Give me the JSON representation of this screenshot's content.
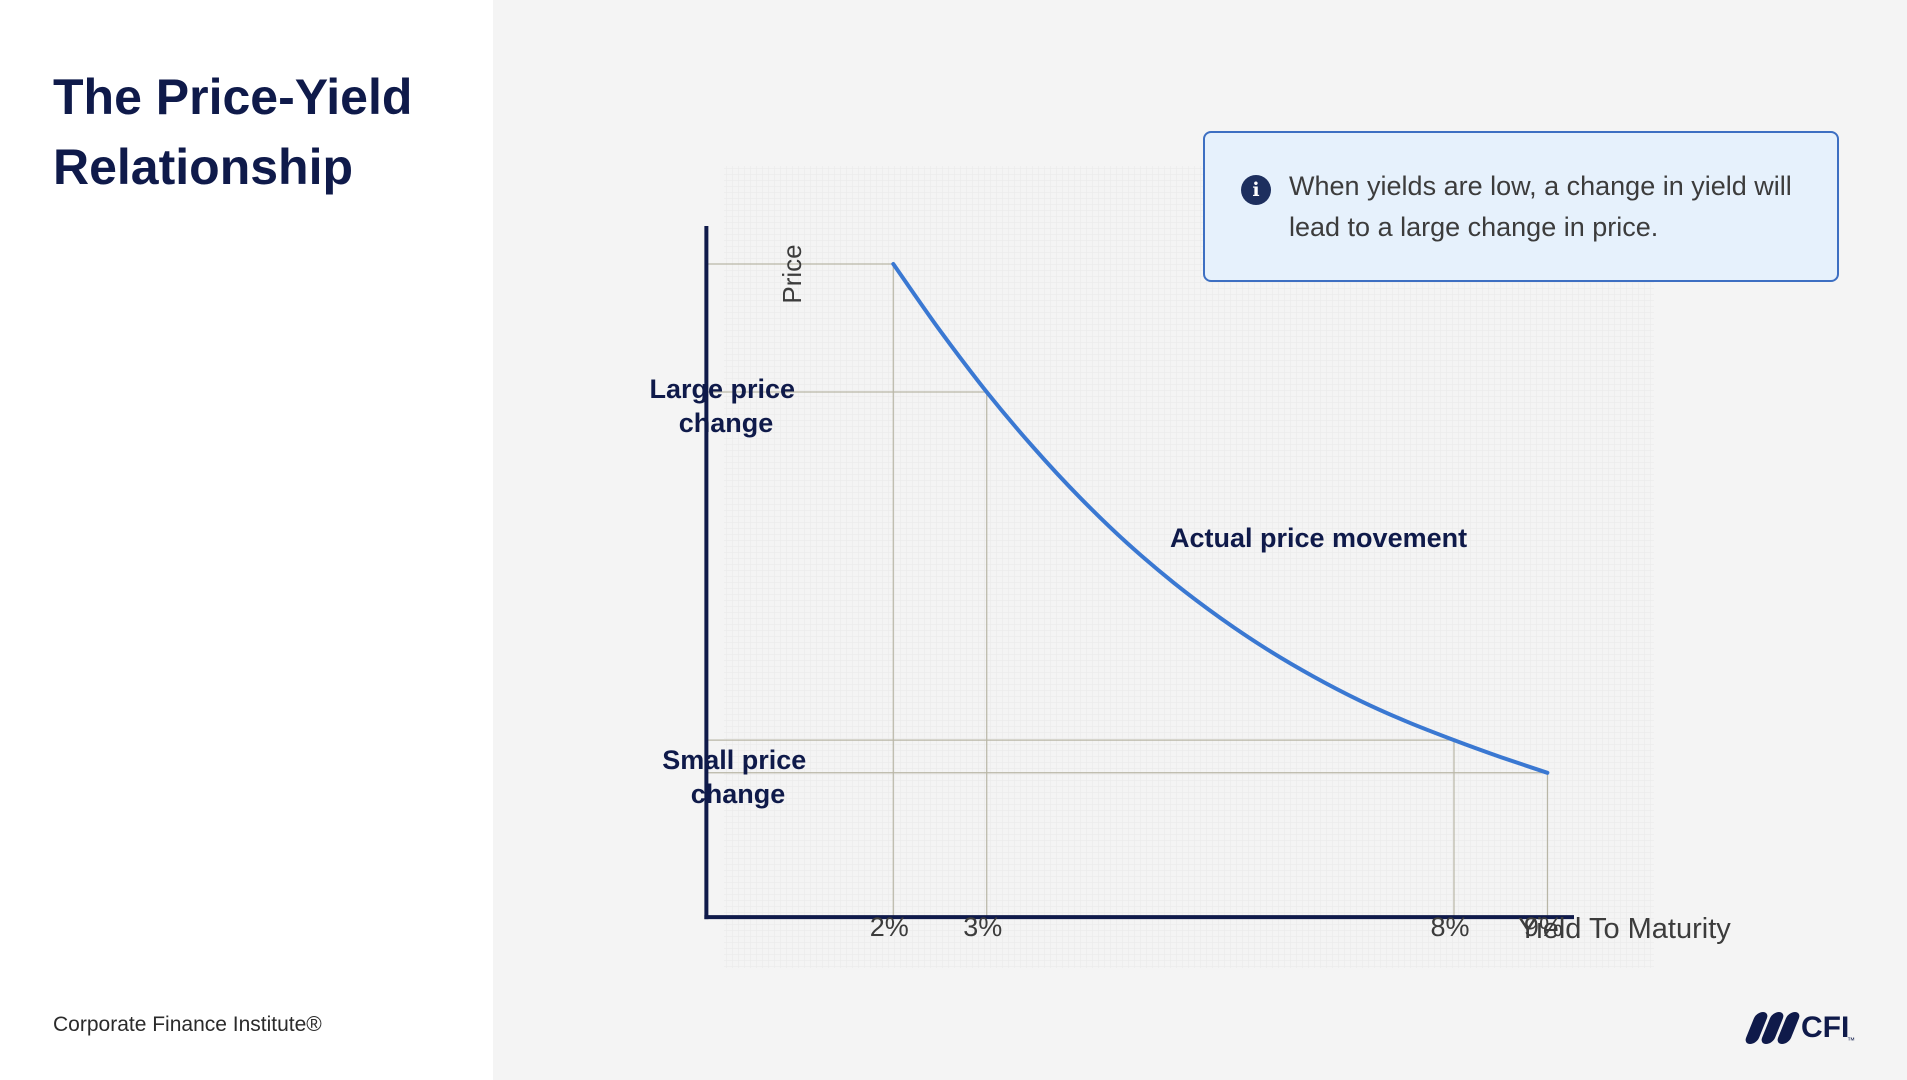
{
  "slide": {
    "title": "The Price-Yield Relationship",
    "footer": "Corporate Finance Institute®",
    "logo_text": "CFI",
    "logo_tm": "™"
  },
  "callout": {
    "icon": "info-icon",
    "text": "When yields are low, a change in yield will lead to a large change in price."
  },
  "colors": {
    "title": "#0f1a4a",
    "curve": "#3a78d2",
    "axis": "#0f1a4a",
    "guide": "#b9b6a6",
    "callout_bg": "#e6f1fc",
    "callout_border": "#3d6fc2"
  },
  "chart_data": {
    "type": "line",
    "ylabel": "Price",
    "xlabel": "Yield To Maturity",
    "x_ticks": [
      "2%",
      "3%",
      "8%",
      "9%"
    ],
    "x_tick_values": [
      2,
      3,
      8,
      9
    ],
    "series": [
      {
        "name": "Actual price movement",
        "x": [
          2,
          2.5,
          3,
          3.5,
          4,
          4.5,
          5,
          5.5,
          6,
          6.5,
          7,
          7.5,
          8,
          8.5,
          9
        ],
        "y": [
          100,
          89.8,
          80.4,
          71.9,
          64.2,
          57.3,
          51.2,
          45.8,
          41.0,
          36.8,
          33.1,
          29.9,
          27.1,
          24.5,
          22.1
        ]
      }
    ],
    "xlim": [
      -0.4,
      10.9
    ],
    "ylim": [
      -13,
      115
    ],
    "annotations": {
      "large_change": "Large price change",
      "small_change": "Small price change",
      "curve_label": "Actual price movement"
    },
    "guides": [
      {
        "x": 2,
        "y": 100
      },
      {
        "x": 3,
        "y": 80.4
      },
      {
        "x": 8,
        "y": 27.1
      },
      {
        "x": 9,
        "y": 22.1
      }
    ],
    "grid": false
  }
}
